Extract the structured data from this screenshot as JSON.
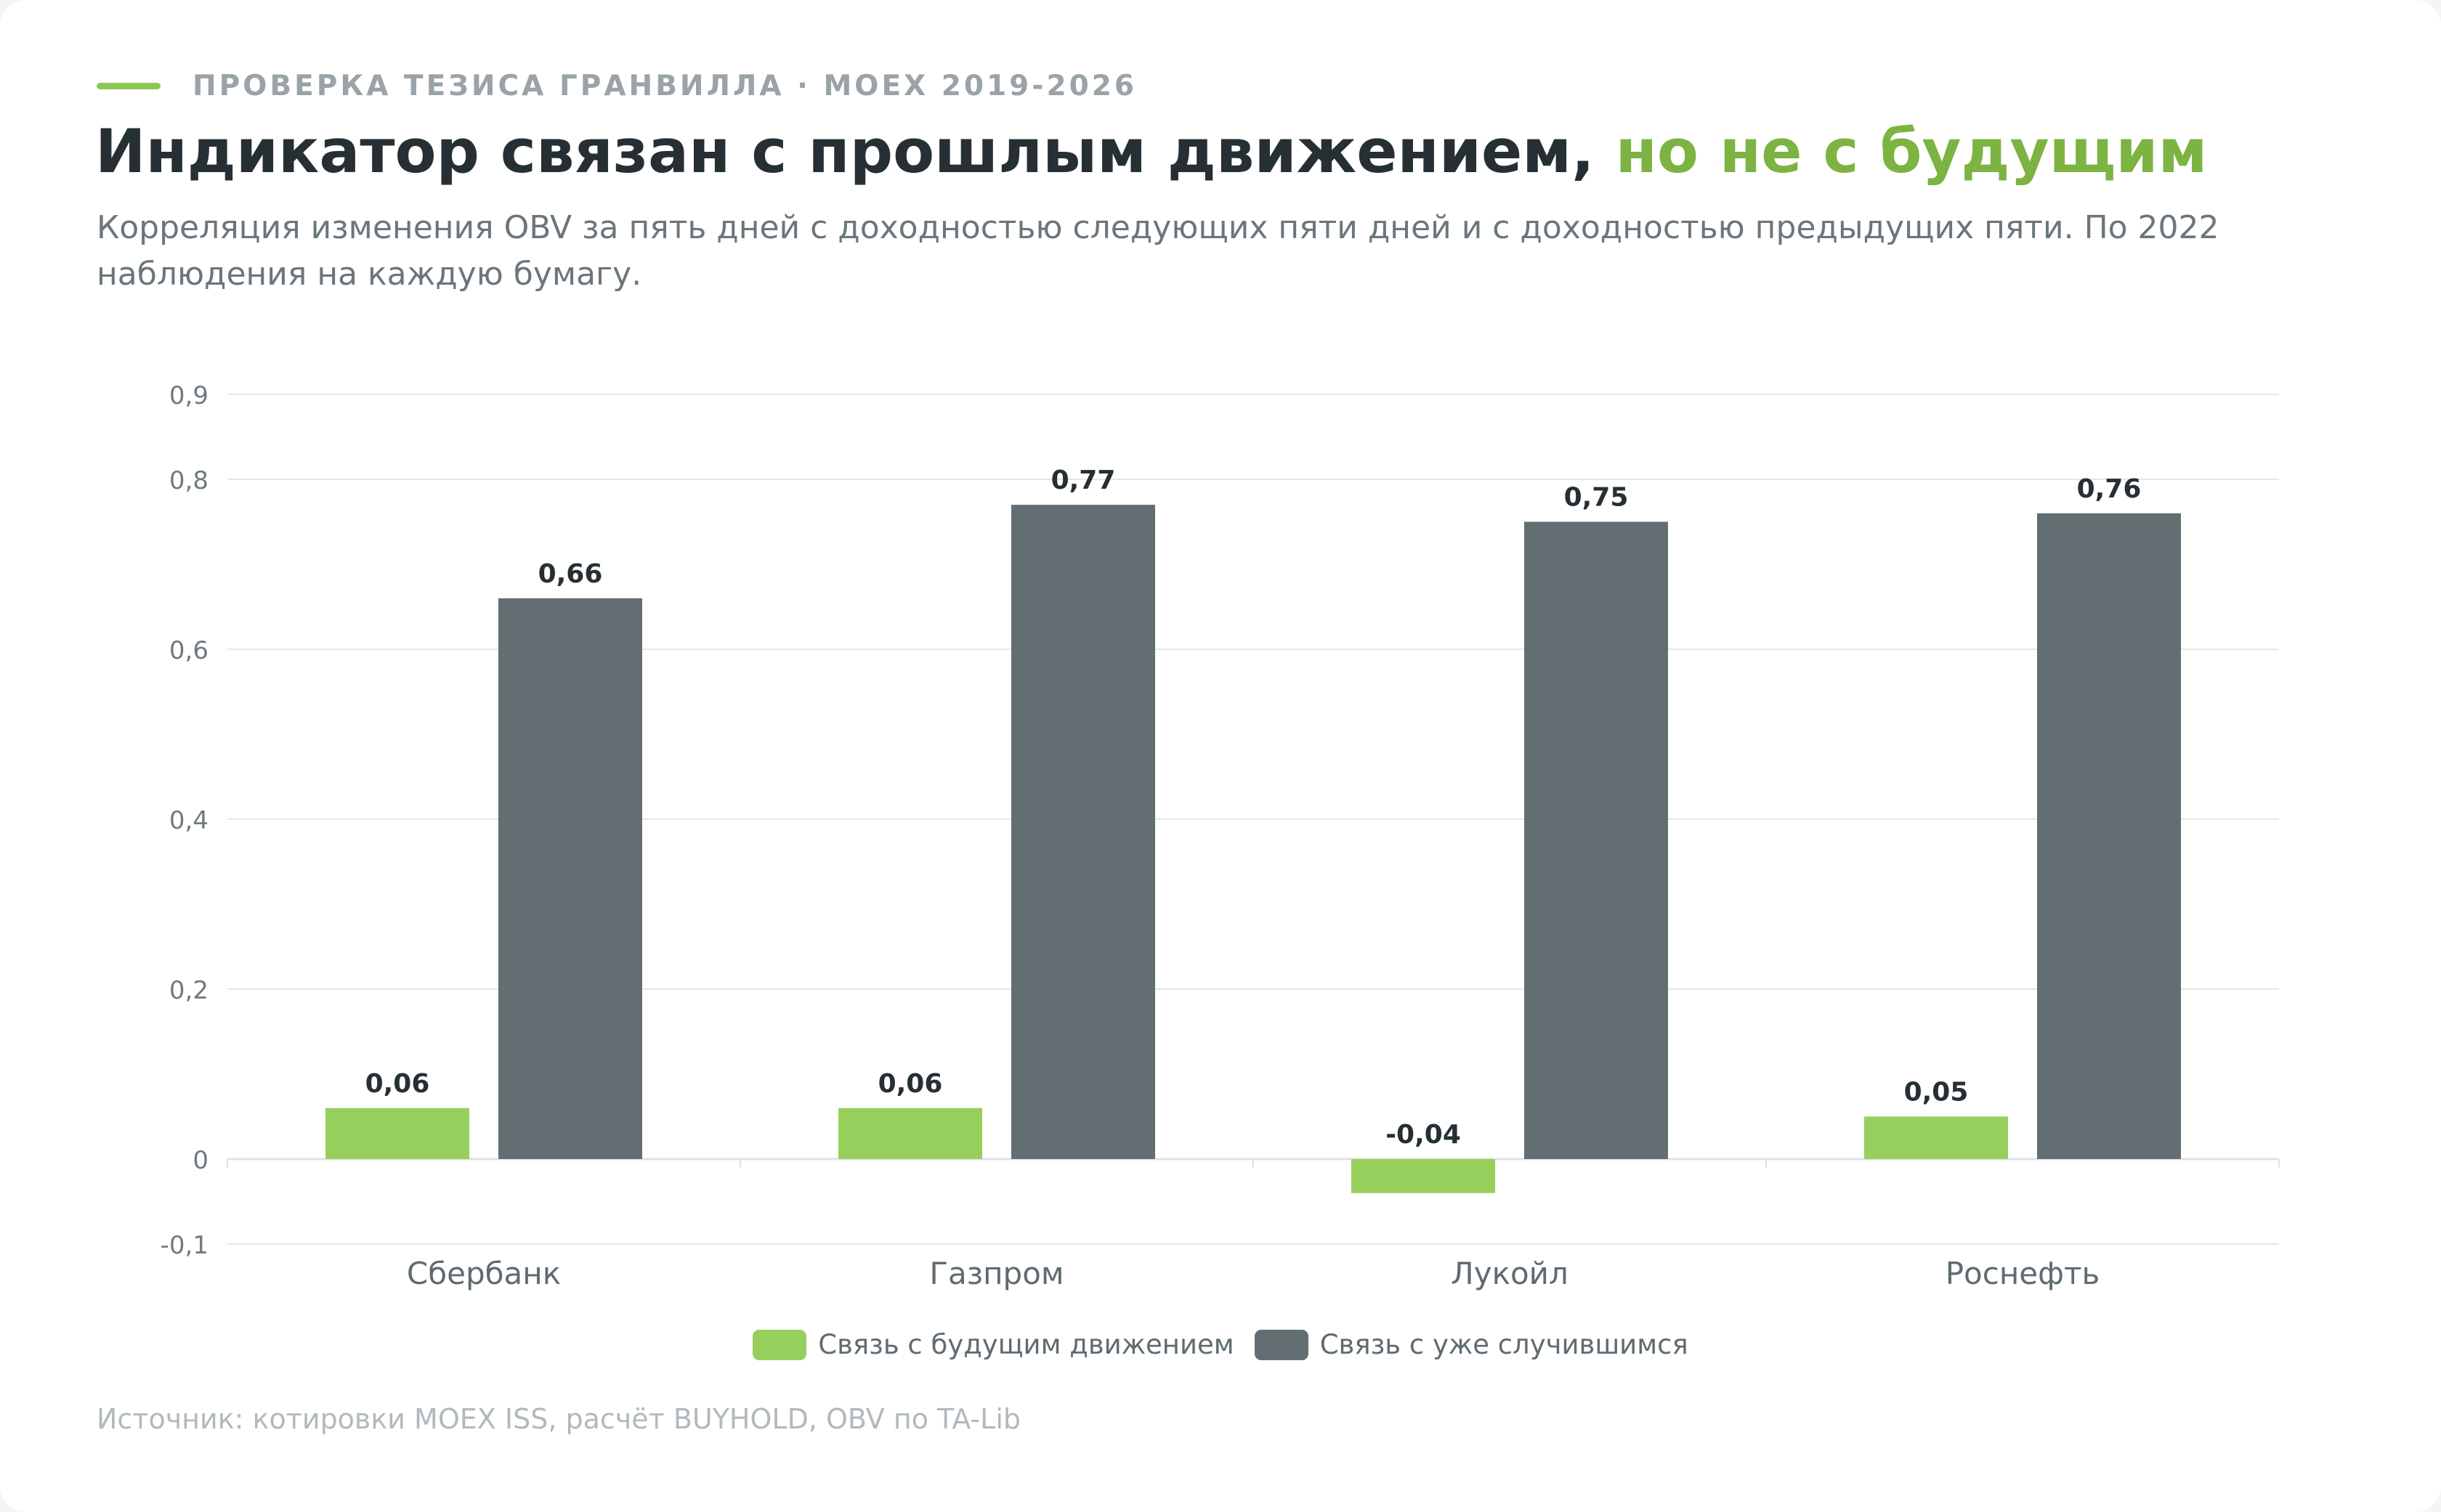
{
  "eyebrow": "ПРОВЕРКА ТЕЗИСА ГРАНВИЛЛА · MOEX 2019-2026",
  "title_main": "Индикатор связан с прошлым движением,",
  "title_accent": "но не с будущим",
  "subtitle": "Корреляция изменения OBV за пять дней с доходностью следующих пяти дней и с доходностью предыдущих пяти. По 2022 наблюдения на каждую бумагу.",
  "source": "Источник: котировки MOEX ISS, расчёт BUYHOLD, OBV по TA-Lib",
  "colors": {
    "future": "#97cf5d",
    "past": "#636e72",
    "accent": "#7cb342"
  },
  "chart_data": {
    "type": "bar",
    "categories": [
      "Сбербанк",
      "Газпром",
      "Лукойл",
      "Роснефть"
    ],
    "series": [
      {
        "name": "Связь с будущим движением",
        "values": [
          0.06,
          0.06,
          -0.04,
          0.05
        ],
        "labels": [
          "0,06",
          "0,06",
          "-0,04",
          "0,05"
        ]
      },
      {
        "name": "Связь с уже случившимся",
        "values": [
          0.66,
          0.77,
          0.75,
          0.76
        ],
        "labels": [
          "0,66",
          "0,77",
          "0,75",
          "0,76"
        ]
      }
    ],
    "yticks": [
      -0.1,
      0,
      0.2,
      0.4,
      0.6,
      0.8,
      0.9
    ],
    "ytick_labels": [
      "-0,1",
      "0",
      "0,2",
      "0,4",
      "0,6",
      "0,8",
      "0,9"
    ],
    "ylim": [
      -0.1,
      0.9
    ],
    "grid": true,
    "legend_position": "bottom"
  }
}
